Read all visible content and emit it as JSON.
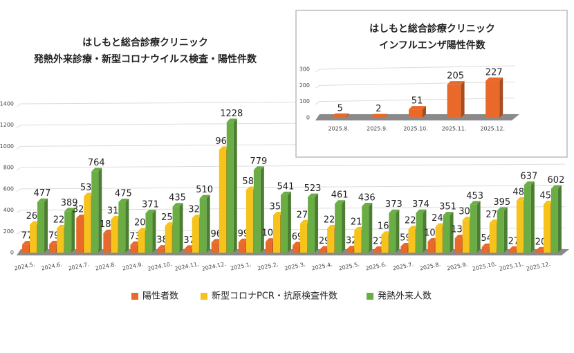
{
  "chart_data": [
    {
      "type": "bar",
      "title": [
        "はしもと総合診療クリニック",
        "発熱外来診療・新型コロナウイルス検査・陽性件数"
      ],
      "categories": [
        "2024.5.",
        "2024.6.",
        "2024.7.",
        "2024.8.",
        "2024.9.",
        "2024.10.",
        "2024.11.",
        "2024.12.",
        "2025.1.",
        "2025.2.",
        "2025.3.",
        "2025.4.",
        "2025.5.",
        "2025.6.",
        "2025.7.",
        "2025.8.",
        "2025.9.",
        "2025.10.",
        "2025.11.",
        "2025.12."
      ],
      "series": [
        {
          "name": "陽性者数",
          "color": "#e8692a",
          "values": [
            77,
            79,
            325,
            184,
            73,
            38,
            37,
            96,
            99,
            103,
            69,
            29,
            32,
            27,
            59,
            104,
            136,
            54,
            27,
            20
          ]
        },
        {
          "name": "新型コロナPCR・抗原検査件数",
          "color": "#f5c31c",
          "values": [
            263,
            229,
            531,
            313,
            201,
            252,
            325,
            967,
            589,
            352,
            275,
            229,
            210,
            168,
            220,
            243,
            305,
            278,
            489,
            457
          ]
        },
        {
          "name": "発熱外来人数",
          "color": "#6aad45",
          "values": [
            477,
            389,
            764,
            475,
            371,
            435,
            510,
            1228,
            779,
            541,
            523,
            461,
            436,
            373,
            374,
            351,
            453,
            395,
            637,
            602
          ]
        }
      ],
      "ylim": [
        0,
        1400
      ],
      "yticks": [
        0,
        200,
        400,
        600,
        800,
        1000,
        1200,
        1400
      ],
      "grid": true,
      "legend": "bottom"
    },
    {
      "type": "bar",
      "title": [
        "はしもと総合診療クリニック",
        "インフルエンザ陽性件数"
      ],
      "categories": [
        "2025.8.",
        "2025.9.",
        "2025.10.",
        "2025.11.",
        "2025.12."
      ],
      "series": [
        {
          "color": "#e8692a",
          "values": [
            5,
            2,
            51,
            205,
            227
          ]
        }
      ],
      "ylim": [
        0,
        300
      ],
      "yticks": [
        0,
        100,
        200,
        300
      ],
      "grid": true
    }
  ]
}
